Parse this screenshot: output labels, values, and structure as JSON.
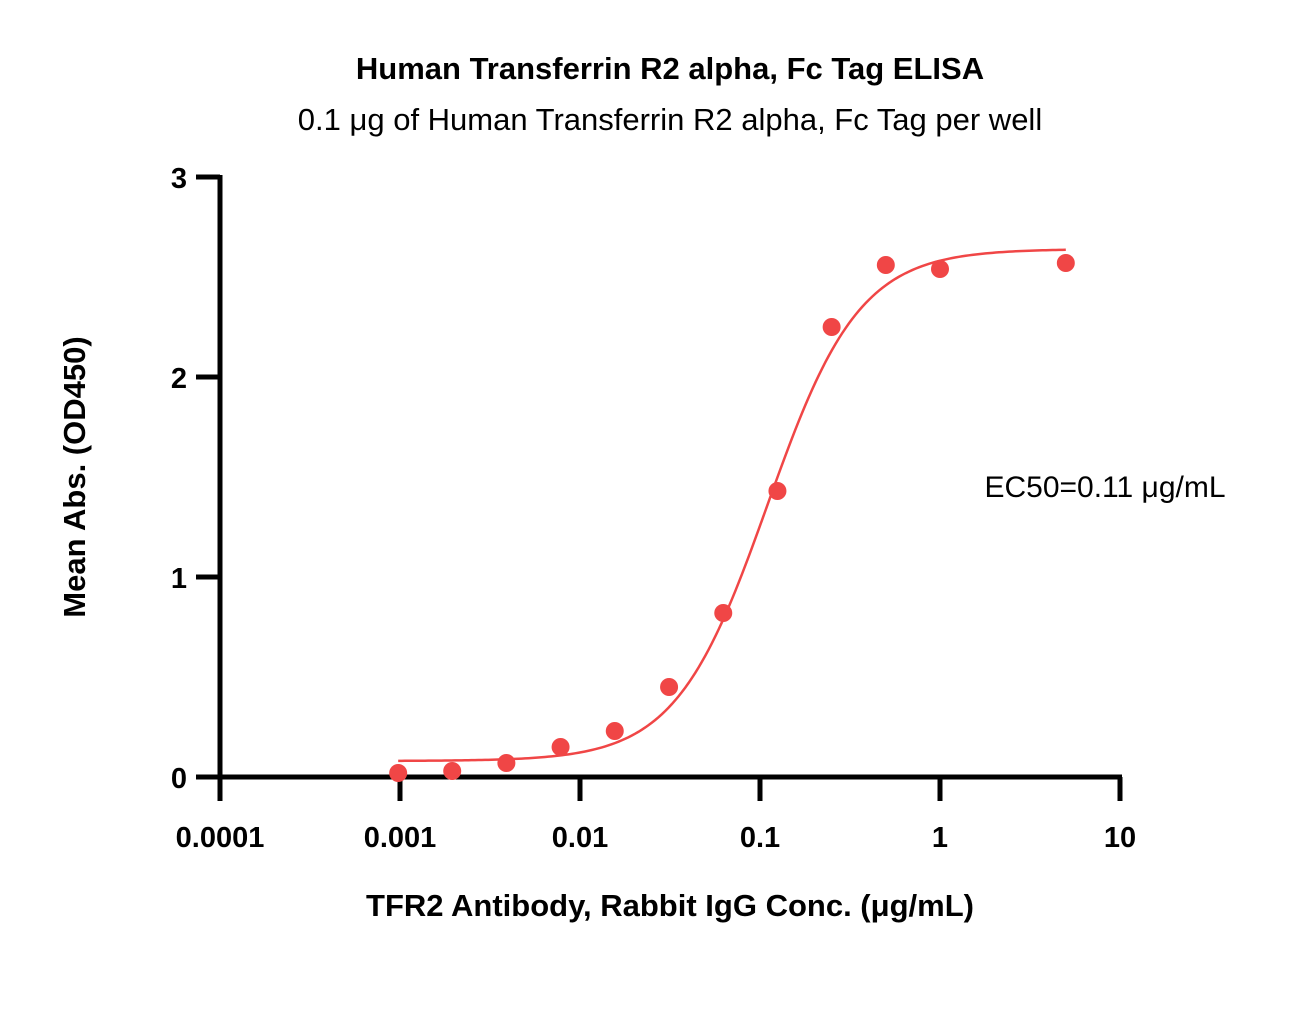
{
  "chart_data": {
    "type": "scatter",
    "title": "Human Transferrin R2 alpha, Fc Tag ELISA",
    "subtitle": "0.1 μg of Human Transferrin R2 alpha, Fc Tag per well",
    "xlabel": "TFR2 Antibody, Rabbit IgG Conc. (μg/mL)",
    "ylabel": "Mean Abs. (OD450)",
    "x_scale": "log",
    "xlim": [
      0.0001,
      10
    ],
    "ylim": [
      0,
      3
    ],
    "x_ticks": [
      "0.0001",
      "0.001",
      "0.01",
      "0.1",
      "1",
      "10"
    ],
    "y_ticks": [
      "0",
      "1",
      "2",
      "3"
    ],
    "annotation": "EC50=0.11 μg/mL",
    "color": "#f04646",
    "series": [
      {
        "points": [
          {
            "x": 0.000977,
            "y": 0.02
          },
          {
            "x": 0.00195,
            "y": 0.03
          },
          {
            "x": 0.0039,
            "y": 0.07
          },
          {
            "x": 0.0078,
            "y": 0.15
          },
          {
            "x": 0.0156,
            "y": 0.23
          },
          {
            "x": 0.03125,
            "y": 0.45
          },
          {
            "x": 0.0625,
            "y": 0.82
          },
          {
            "x": 0.125,
            "y": 1.43
          },
          {
            "x": 0.25,
            "y": 2.25
          },
          {
            "x": 0.5,
            "y": 2.56
          },
          {
            "x": 1,
            "y": 2.54
          },
          {
            "x": 5,
            "y": 2.57
          }
        ],
        "fit": {
          "bottom": 0.08,
          "top": 2.64,
          "ec50": 0.11,
          "hill": 1.7,
          "x_range": [
            0.000977,
            5
          ]
        }
      }
    ]
  }
}
